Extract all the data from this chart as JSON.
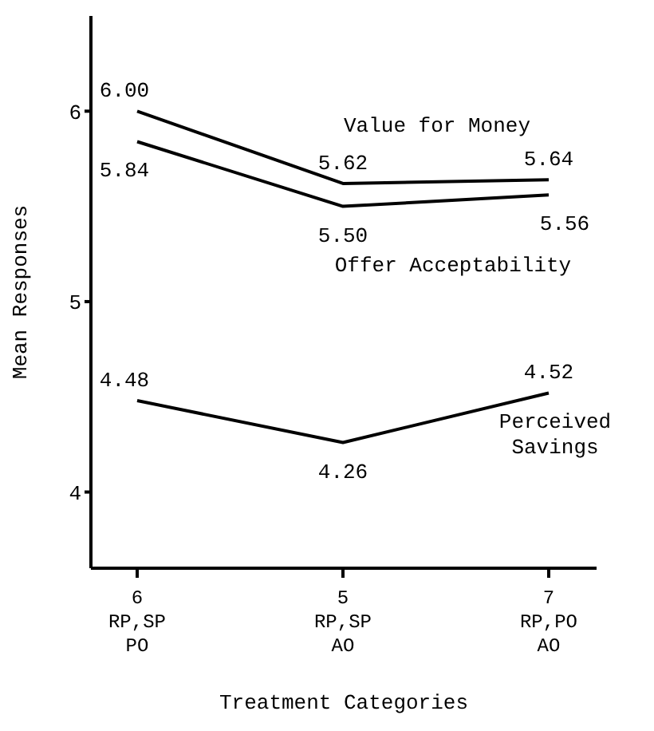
{
  "chart_data": {
    "type": "line",
    "xlabel": "Treatment Categories",
    "ylabel": "Mean Responses",
    "categories": [
      "6\nRP,SP\nPO",
      "5\nRP,SP\nAO",
      "7\nRP,PO\nAO"
    ],
    "series": [
      {
        "name": "Value for Money",
        "color": "#000000",
        "values": [
          6.0,
          5.62,
          5.64
        ],
        "value_labels": [
          "6.00",
          "5.62",
          "5.64"
        ]
      },
      {
        "name": "Offer Acceptability",
        "color": "#000000",
        "values": [
          5.84,
          5.5,
          5.56
        ],
        "value_labels": [
          "5.84",
          "5.50",
          "5.56"
        ]
      },
      {
        "name": "Perceived Savings",
        "color": "#000000",
        "values": [
          4.48,
          4.26,
          4.52
        ],
        "value_labels": [
          "4.48",
          "4.26",
          "4.52"
        ]
      }
    ],
    "ylim": [
      3.6,
      6.5
    ],
    "yticks": [
      4,
      5,
      6
    ],
    "grid": false,
    "legend": false,
    "marker": "none",
    "line_style": "solid"
  }
}
